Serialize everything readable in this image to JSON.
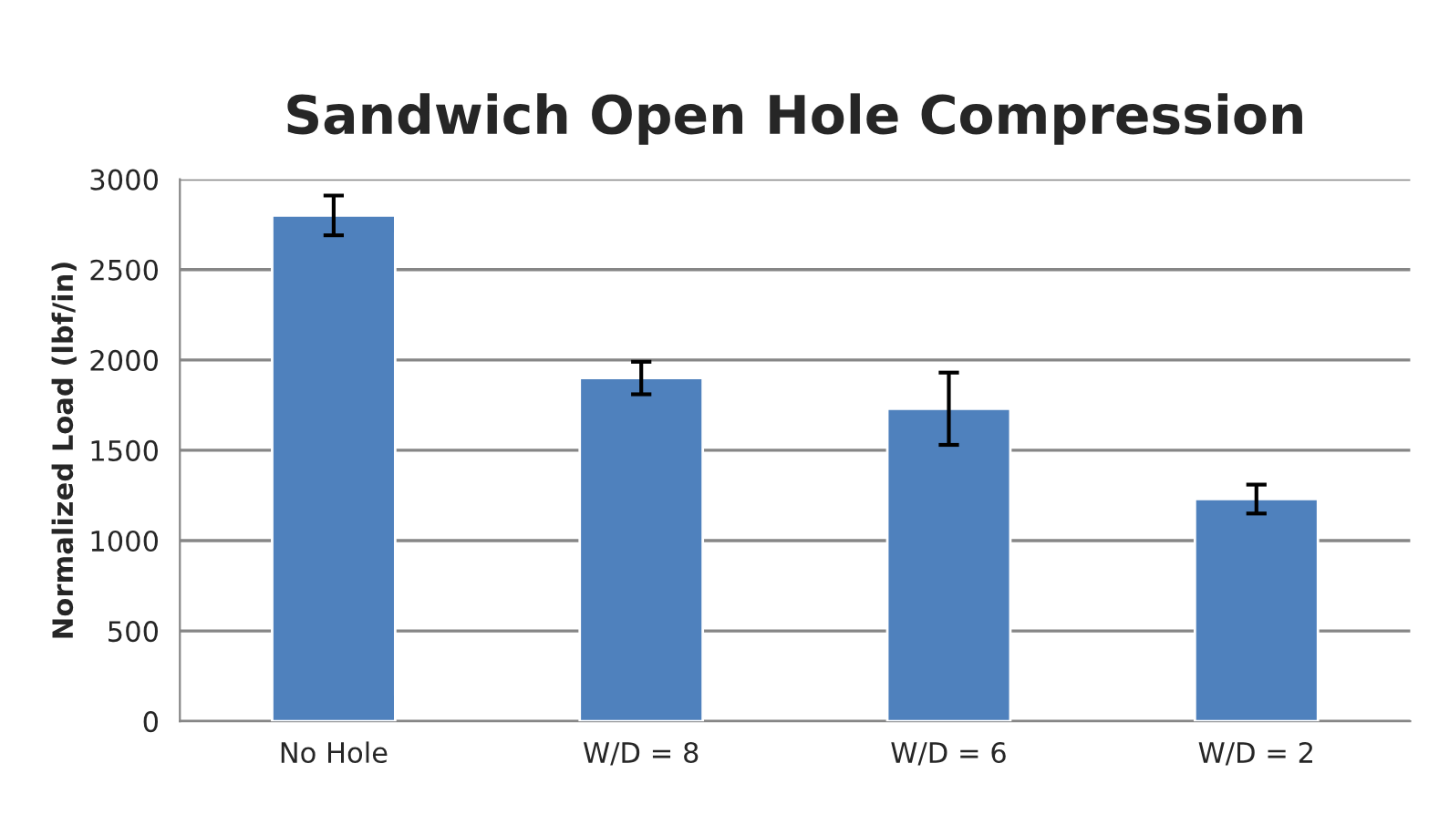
{
  "chart_data": {
    "type": "bar",
    "title": "Sandwich Open Hole Compression",
    "ylabel": "Normalized Load (lbf/in)",
    "categories": [
      "No Hole",
      "W/D = 8",
      "W/D = 6",
      "W/D = 2"
    ],
    "values": [
      2800,
      1900,
      1730,
      1230
    ],
    "errors": [
      110,
      90,
      200,
      80
    ],
    "color": "#4f81bd",
    "ylim": [
      0,
      3000
    ],
    "yticks": [
      0,
      500,
      1000,
      1500,
      2000,
      2500,
      3000
    ],
    "grid": "y"
  }
}
